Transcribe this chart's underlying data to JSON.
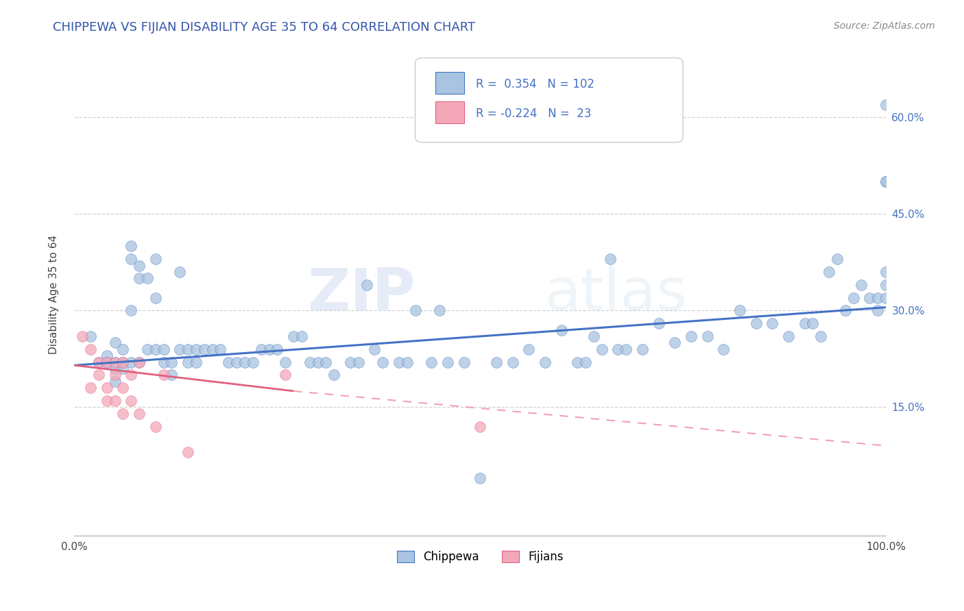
{
  "title": "CHIPPEWA VS FIJIAN DISABILITY AGE 35 TO 64 CORRELATION CHART",
  "source_text": "Source: ZipAtlas.com",
  "ylabel": "Disability Age 35 to 64",
  "xlim": [
    0.0,
    1.0
  ],
  "ylim": [
    -0.05,
    0.7
  ],
  "x_ticks": [
    0.0,
    0.2,
    0.4,
    0.6,
    0.8,
    1.0
  ],
  "x_tick_labels": [
    "0.0%",
    "",
    "",
    "",
    "",
    "100.0%"
  ],
  "y_ticks": [
    0.15,
    0.3,
    0.45,
    0.6
  ],
  "y_tick_labels": [
    "15.0%",
    "30.0%",
    "45.0%",
    "60.0%"
  ],
  "chippewa_R": 0.354,
  "chippewa_N": 102,
  "fijian_R": -0.224,
  "fijian_N": 23,
  "chippewa_color": "#a8c4e0",
  "fijian_color": "#f4a7b9",
  "chippewa_line_color": "#4472c4",
  "fijian_line_solid_color": "#e06080",
  "fijian_line_dash_color": "#f4a0b0",
  "title_color": "#3355aa",
  "source_color": "#888888",
  "grid_color": "#cccccc",
  "background_color": "#ffffff",
  "chippewa_x": [
    0.02,
    0.03,
    0.04,
    0.04,
    0.05,
    0.05,
    0.05,
    0.05,
    0.06,
    0.06,
    0.06,
    0.07,
    0.07,
    0.07,
    0.07,
    0.08,
    0.08,
    0.08,
    0.09,
    0.09,
    0.1,
    0.1,
    0.1,
    0.11,
    0.11,
    0.12,
    0.12,
    0.13,
    0.13,
    0.14,
    0.14,
    0.15,
    0.15,
    0.16,
    0.17,
    0.18,
    0.19,
    0.2,
    0.21,
    0.22,
    0.23,
    0.24,
    0.25,
    0.26,
    0.27,
    0.28,
    0.29,
    0.3,
    0.31,
    0.32,
    0.34,
    0.35,
    0.36,
    0.37,
    0.38,
    0.4,
    0.41,
    0.42,
    0.44,
    0.45,
    0.46,
    0.48,
    0.5,
    0.52,
    0.54,
    0.56,
    0.58,
    0.6,
    0.62,
    0.63,
    0.64,
    0.65,
    0.66,
    0.67,
    0.68,
    0.7,
    0.72,
    0.74,
    0.76,
    0.78,
    0.8,
    0.82,
    0.84,
    0.86,
    0.88,
    0.9,
    0.91,
    0.92,
    0.93,
    0.94,
    0.95,
    0.96,
    0.97,
    0.98,
    0.99,
    0.99,
    1.0,
    1.0,
    1.0,
    1.0,
    1.0,
    1.0
  ],
  "chippewa_y": [
    0.26,
    0.22,
    0.23,
    0.22,
    0.25,
    0.22,
    0.21,
    0.19,
    0.24,
    0.22,
    0.21,
    0.4,
    0.38,
    0.3,
    0.22,
    0.37,
    0.35,
    0.22,
    0.35,
    0.24,
    0.38,
    0.32,
    0.24,
    0.24,
    0.22,
    0.22,
    0.2,
    0.36,
    0.24,
    0.24,
    0.22,
    0.24,
    0.22,
    0.24,
    0.24,
    0.24,
    0.22,
    0.22,
    0.22,
    0.22,
    0.24,
    0.24,
    0.24,
    0.22,
    0.26,
    0.26,
    0.22,
    0.22,
    0.22,
    0.2,
    0.22,
    0.22,
    0.34,
    0.24,
    0.22,
    0.22,
    0.22,
    0.3,
    0.22,
    0.3,
    0.22,
    0.22,
    0.04,
    0.22,
    0.22,
    0.24,
    0.22,
    0.27,
    0.22,
    0.22,
    0.26,
    0.24,
    0.38,
    0.24,
    0.24,
    0.24,
    0.28,
    0.25,
    0.26,
    0.26,
    0.24,
    0.3,
    0.28,
    0.28,
    0.26,
    0.28,
    0.28,
    0.26,
    0.36,
    0.38,
    0.3,
    0.32,
    0.34,
    0.32,
    0.32,
    0.3,
    0.34,
    0.5,
    0.62,
    0.32,
    0.36,
    0.5
  ],
  "fijian_x": [
    0.01,
    0.02,
    0.02,
    0.03,
    0.03,
    0.04,
    0.04,
    0.04,
    0.05,
    0.05,
    0.05,
    0.06,
    0.06,
    0.06,
    0.07,
    0.07,
    0.08,
    0.08,
    0.1,
    0.11,
    0.14,
    0.26,
    0.5
  ],
  "fijian_y": [
    0.26,
    0.24,
    0.18,
    0.22,
    0.2,
    0.22,
    0.18,
    0.16,
    0.22,
    0.2,
    0.16,
    0.22,
    0.18,
    0.14,
    0.2,
    0.16,
    0.22,
    0.14,
    0.12,
    0.2,
    0.08,
    0.2,
    0.12
  ],
  "watermark_zip": "ZIP",
  "watermark_atlas": "atlas",
  "chippewa_trend_x": [
    0.0,
    1.0
  ],
  "chippewa_trend_y": [
    0.215,
    0.305
  ],
  "fijian_solid_trend_x": [
    0.0,
    0.27
  ],
  "fijian_solid_trend_y": [
    0.215,
    0.175
  ],
  "fijian_dash_trend_x": [
    0.27,
    1.0
  ],
  "fijian_dash_trend_y": [
    0.175,
    0.09
  ]
}
